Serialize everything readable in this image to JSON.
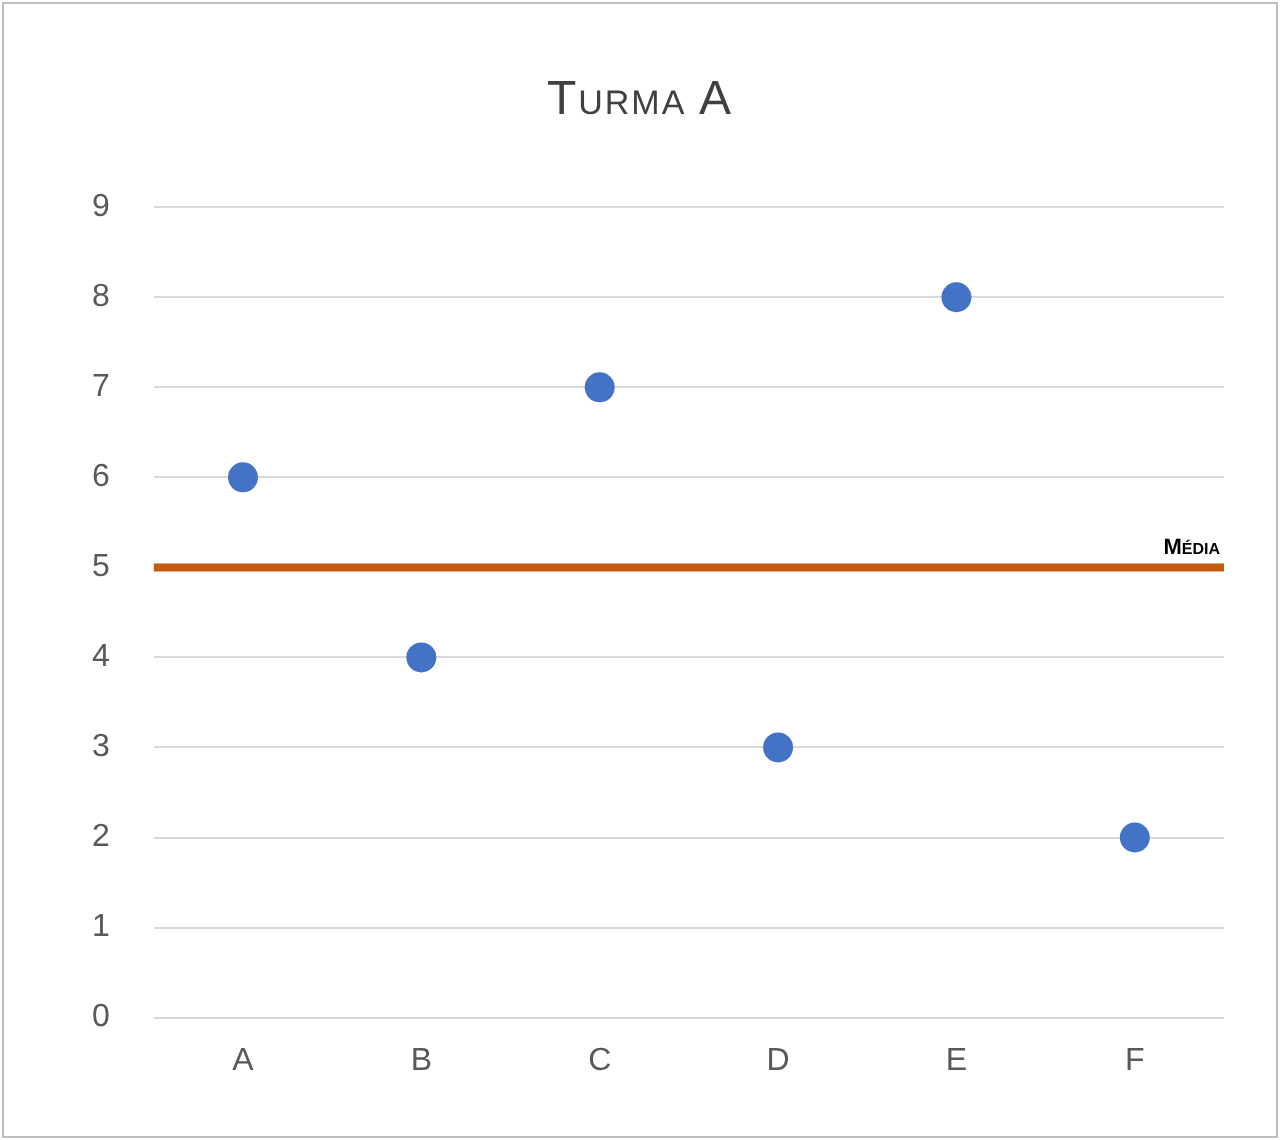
{
  "chart_data": {
    "type": "scatter",
    "title": "Turma A",
    "categories": [
      "A",
      "B",
      "C",
      "D",
      "E",
      "F"
    ],
    "series": [
      {
        "color": "#4472c4",
        "values": [
          6,
          4,
          7,
          3,
          8,
          2
        ]
      }
    ],
    "ylim": [
      0,
      9
    ],
    "yticks": [
      0,
      1,
      2,
      3,
      4,
      5,
      6,
      7,
      8,
      9
    ],
    "grid": "y",
    "legend": false,
    "marker": "circle",
    "ref_lines": [
      {
        "axis": "y",
        "value": 5,
        "label": "Média",
        "color": "#c55a11"
      }
    ]
  }
}
